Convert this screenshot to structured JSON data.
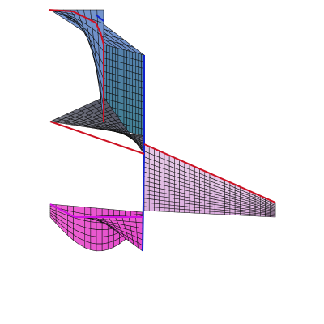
{
  "render": {
    "background": "#ffffff",
    "mesh_line_color": "#111111",
    "colors": {
      "upper_surface_light": "#7f9dd8",
      "upper_surface_mid": "#5e82b8",
      "upper_surface_teal": "#3f7f8f",
      "middle_surface_gray": "#8f9199",
      "middle_surface_dark": "#505262",
      "right_fan_light": "#e9d2ea",
      "right_fan_pink": "#d9a9dc",
      "lower_surface_pink": "#f26fd6",
      "lower_surface_magenta": "#e040c8",
      "edge_red": "#cc1122",
      "edge_blue": "#1122cc",
      "edge_magenta": "#d010e0"
    },
    "surfaces": [
      "upper-blue-sheet",
      "middle-gray-sheet",
      "right-pink-fan",
      "lower-magenta-fan"
    ]
  }
}
